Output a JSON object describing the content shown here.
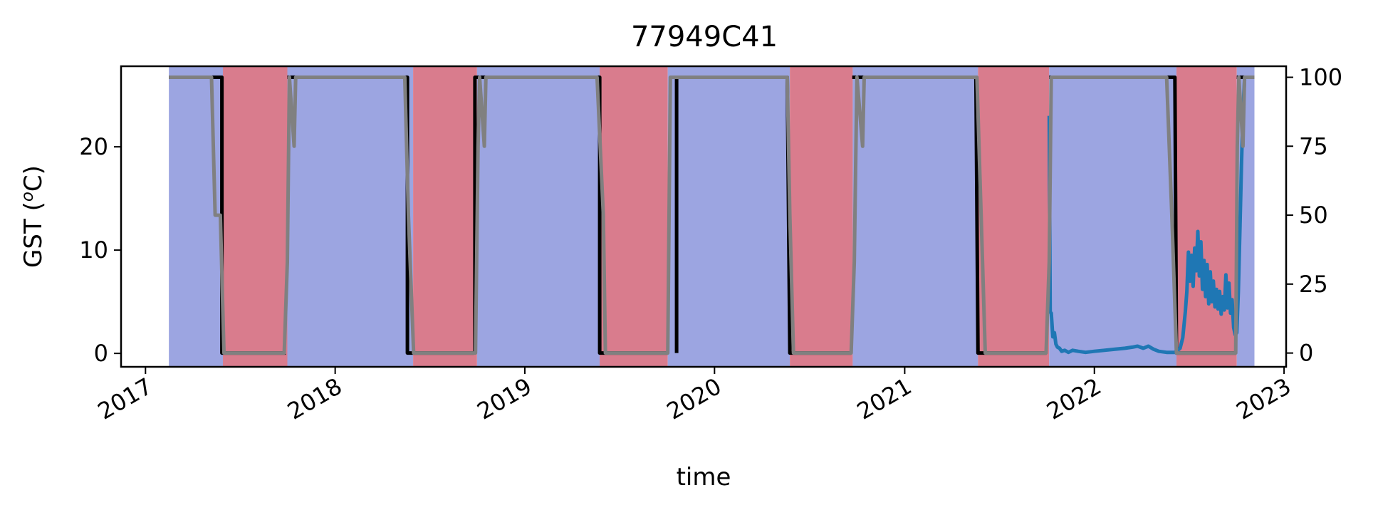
{
  "chart_data": {
    "type": "line",
    "title": "77949C41",
    "xlabel": "time",
    "ylabel": "GST (ᵒC)",
    "ylabel_parts": {
      "prefix": "GST (",
      "sup": "o",
      "suffix": "C)"
    },
    "xlim": [
      "2016-11-15",
      "2023-01-05"
    ],
    "ylim": [
      -1.3,
      27.8
    ],
    "y2lim": [
      -5,
      104
    ],
    "x_ticks": [
      {
        "date": "2017-01-01",
        "label": "2017"
      },
      {
        "date": "2018-01-01",
        "label": "2018"
      },
      {
        "date": "2019-01-01",
        "label": "2019"
      },
      {
        "date": "2020-01-01",
        "label": "2020"
      },
      {
        "date": "2021-01-01",
        "label": "2021"
      },
      {
        "date": "2022-01-01",
        "label": "2022"
      },
      {
        "date": "2023-01-01",
        "label": "2023"
      }
    ],
    "y_ticks": [
      {
        "value": 0,
        "label": "0"
      },
      {
        "value": 10,
        "label": "10"
      },
      {
        "value": 20,
        "label": "20"
      }
    ],
    "y2_ticks": [
      {
        "value": 0,
        "label": "0"
      },
      {
        "value": 25,
        "label": "25"
      },
      {
        "value": 50,
        "label": "50"
      },
      {
        "value": 75,
        "label": "75"
      },
      {
        "value": 100,
        "label": "100"
      }
    ],
    "colors": {
      "blue_band": "#9ca5e1",
      "red_band": "#d97c8d",
      "gst_line": "#1f77b4",
      "black_line": "#000000",
      "gray_line": "#808080"
    },
    "bands": [
      {
        "start": "2017-02-15",
        "end": "2017-05-30",
        "state": "blue"
      },
      {
        "start": "2017-05-30",
        "end": "2017-10-01",
        "state": "red"
      },
      {
        "start": "2017-10-01",
        "end": "2018-05-31",
        "state": "blue"
      },
      {
        "start": "2018-05-31",
        "end": "2018-10-01",
        "state": "red"
      },
      {
        "start": "2018-10-01",
        "end": "2019-05-25",
        "state": "blue"
      },
      {
        "start": "2019-05-25",
        "end": "2019-10-03",
        "state": "red"
      },
      {
        "start": "2019-10-03",
        "end": "2020-05-25",
        "state": "blue"
      },
      {
        "start": "2020-05-25",
        "end": "2020-09-23",
        "state": "red"
      },
      {
        "start": "2020-09-23",
        "end": "2021-05-22",
        "state": "blue"
      },
      {
        "start": "2021-05-22",
        "end": "2021-10-06",
        "state": "red"
      },
      {
        "start": "2021-10-06",
        "end": "2022-06-08",
        "state": "blue"
      },
      {
        "start": "2022-06-08",
        "end": "2022-10-02",
        "state": "red"
      },
      {
        "start": "2022-10-02",
        "end": "2022-11-05",
        "state": "blue"
      }
    ],
    "black_segments": [
      [
        [
          "2017-02-15",
          100
        ],
        [
          "2017-05-28",
          100
        ],
        [
          "2017-05-28",
          0
        ],
        [
          "2017-09-28",
          0
        ]
      ],
      [
        [
          "2017-10-01",
          100
        ],
        [
          "2018-05-20",
          100
        ],
        [
          "2018-05-20",
          0
        ],
        [
          "2018-09-25",
          0
        ]
      ],
      [
        [
          "2018-09-27",
          0
        ],
        [
          "2018-09-27",
          100
        ],
        [
          "2019-05-25",
          100
        ],
        [
          "2019-05-25",
          0
        ],
        [
          "2019-10-03",
          0
        ]
      ],
      [
        [
          "2019-10-20",
          0
        ],
        [
          "2019-10-20",
          100
        ],
        [
          "2020-05-20",
          100
        ],
        [
          "2020-05-25",
          0
        ],
        [
          "2020-09-20",
          0
        ]
      ],
      [
        [
          "2020-09-22",
          100
        ],
        [
          "2021-05-18",
          100
        ],
        [
          "2021-05-22",
          0
        ],
        [
          "2021-10-01",
          0
        ]
      ],
      [
        [
          "2021-10-06",
          100
        ],
        [
          "2022-06-05",
          100
        ],
        [
          "2022-06-08",
          0
        ],
        [
          "2022-10-01",
          0
        ]
      ],
      [
        [
          "2022-10-02",
          100
        ],
        [
          "2022-11-05",
          100
        ]
      ]
    ],
    "gray_segments": [
      [
        [
          "2017-02-15",
          100
        ],
        [
          "2017-05-08",
          100
        ],
        [
          "2017-05-15",
          50
        ],
        [
          "2017-05-25",
          50
        ],
        [
          "2017-06-01",
          0
        ],
        [
          "2017-09-25",
          0
        ],
        [
          "2017-10-01",
          33
        ],
        [
          "2017-10-05",
          100
        ],
        [
          "2017-10-14",
          75
        ],
        [
          "2017-10-17",
          100
        ],
        [
          "2018-05-15",
          100
        ],
        [
          "2018-05-22",
          50
        ],
        [
          "2018-06-01",
          0
        ],
        [
          "2018-09-28",
          0
        ],
        [
          "2018-10-03",
          75
        ],
        [
          "2018-10-06",
          100
        ],
        [
          "2018-10-15",
          75
        ],
        [
          "2018-10-18",
          100
        ],
        [
          "2019-05-20",
          100
        ],
        [
          "2019-06-01",
          50
        ],
        [
          "2019-06-05",
          0
        ],
        [
          "2019-10-03",
          0
        ],
        [
          "2019-10-08",
          100
        ],
        [
          "2020-05-20",
          100
        ],
        [
          "2020-05-25",
          50
        ],
        [
          "2020-06-01",
          0
        ],
        [
          "2020-09-20",
          0
        ],
        [
          "2020-09-26",
          33
        ],
        [
          "2020-10-01",
          100
        ],
        [
          "2020-10-12",
          75
        ],
        [
          "2020-10-15",
          100
        ],
        [
          "2021-05-20",
          100
        ],
        [
          "2021-05-28",
          50
        ],
        [
          "2021-06-05",
          0
        ],
        [
          "2021-09-30",
          0
        ],
        [
          "2021-10-06",
          33
        ],
        [
          "2021-10-10",
          100
        ],
        [
          "2022-05-20",
          100
        ],
        [
          "2022-05-30",
          50
        ],
        [
          "2022-06-08",
          0
        ],
        [
          "2022-09-30",
          0
        ],
        [
          "2022-10-03",
          75
        ],
        [
          "2022-10-06",
          100
        ],
        [
          "2022-10-14",
          75
        ],
        [
          "2022-10-17",
          100
        ],
        [
          "2022-11-05",
          100
        ]
      ]
    ],
    "gst_series": [
      [
        "2021-10-06",
        23.0
      ],
      [
        "2021-10-08",
        4.0
      ],
      [
        "2021-10-10",
        3.9
      ],
      [
        "2021-10-13",
        1.6
      ],
      [
        "2021-10-16",
        2.0
      ],
      [
        "2021-10-19",
        0.9
      ],
      [
        "2021-10-22",
        0.6
      ],
      [
        "2021-10-26",
        0.5
      ],
      [
        "2021-10-30",
        0.2
      ],
      [
        "2021-11-05",
        0.3
      ],
      [
        "2021-11-12",
        0.1
      ],
      [
        "2021-11-20",
        0.3
      ],
      [
        "2021-12-01",
        0.2
      ],
      [
        "2021-12-15",
        0.1
      ],
      [
        "2022-01-01",
        0.2
      ],
      [
        "2022-01-20",
        0.3
      ],
      [
        "2022-02-10",
        0.4
      ],
      [
        "2022-03-01",
        0.5
      ],
      [
        "2022-03-15",
        0.6
      ],
      [
        "2022-03-25",
        0.7
      ],
      [
        "2022-04-05",
        0.5
      ],
      [
        "2022-04-15",
        0.7
      ],
      [
        "2022-04-25",
        0.4
      ],
      [
        "2022-05-05",
        0.2
      ],
      [
        "2022-05-20",
        0.1
      ],
      [
        "2022-06-05",
        0.1
      ],
      [
        "2022-06-15",
        0.5
      ],
      [
        "2022-06-20",
        1.5
      ],
      [
        "2022-06-25",
        4.0
      ],
      [
        "2022-06-28",
        6.0
      ],
      [
        "2022-07-01",
        9.8
      ],
      [
        "2022-07-04",
        7.0
      ],
      [
        "2022-07-07",
        9.5
      ],
      [
        "2022-07-10",
        6.5
      ],
      [
        "2022-07-13",
        10.2
      ],
      [
        "2022-07-16",
        8.0
      ],
      [
        "2022-07-19",
        11.8
      ],
      [
        "2022-07-22",
        7.5
      ],
      [
        "2022-07-25",
        10.8
      ],
      [
        "2022-07-28",
        6.2
      ],
      [
        "2022-07-31",
        9.0
      ],
      [
        "2022-08-03",
        5.5
      ],
      [
        "2022-08-06",
        8.6
      ],
      [
        "2022-08-09",
        4.8
      ],
      [
        "2022-08-12",
        7.9
      ],
      [
        "2022-08-15",
        5.0
      ],
      [
        "2022-08-18",
        7.0
      ],
      [
        "2022-08-21",
        4.5
      ],
      [
        "2022-08-24",
        6.2
      ],
      [
        "2022-08-27",
        4.3
      ],
      [
        "2022-08-30",
        6.0
      ],
      [
        "2022-09-02",
        3.8
      ],
      [
        "2022-09-05",
        5.5
      ],
      [
        "2022-09-08",
        4.2
      ],
      [
        "2022-09-11",
        7.6
      ],
      [
        "2022-09-14",
        4.4
      ],
      [
        "2022-09-17",
        6.8
      ],
      [
        "2022-09-20",
        3.9
      ],
      [
        "2022-09-23",
        5.2
      ],
      [
        "2022-09-26",
        2.5
      ],
      [
        "2022-09-29",
        1.8
      ],
      [
        "2022-10-02",
        2.0
      ],
      [
        "2022-10-05",
        6.0
      ],
      [
        "2022-10-08",
        12.0
      ],
      [
        "2022-10-11",
        18.0
      ],
      [
        "2022-10-14",
        23.5
      ],
      [
        "2022-10-17",
        26.5
      ]
    ]
  }
}
